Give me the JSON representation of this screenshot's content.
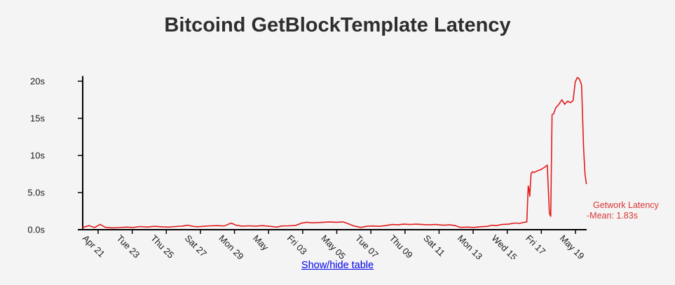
{
  "page": {
    "title": "Bitcoind GetBlockTemplate Latency",
    "background": "#f4f4f4"
  },
  "legend": {
    "line1": "Getwork Latency",
    "line2": "-Mean: 1.83s",
    "text_color": "#d93636"
  },
  "footer": {
    "toggle_link": "Show/hide table"
  },
  "chart_data": {
    "type": "line",
    "title": "Bitcoind GetBlockTemplate Latency",
    "xlabel": "",
    "ylabel": "",
    "grid": false,
    "legend_position": "right",
    "ylim": [
      0,
      20.7
    ],
    "x_unit": "days since Apr 21",
    "y_unit": "seconds",
    "axis_color": "#000000",
    "y_ticks": [
      {
        "label": "0.0s",
        "value": 0
      },
      {
        "label": "5.0s",
        "value": 5
      },
      {
        "label": "10s",
        "value": 10
      },
      {
        "label": "15s",
        "value": 15
      },
      {
        "label": "20s",
        "value": 20
      }
    ],
    "x_ticks": [
      {
        "label": "Apr 21",
        "day": 0
      },
      {
        "label": "Tue 23",
        "day": 2
      },
      {
        "label": "Thu 25",
        "day": 4
      },
      {
        "label": "Sat 27",
        "day": 6
      },
      {
        "label": "Mon 29",
        "day": 8
      },
      {
        "label": "May",
        "day": 10
      },
      {
        "label": "Fri 03",
        "day": 12
      },
      {
        "label": "May 05",
        "day": 14
      },
      {
        "label": "Tue 07",
        "day": 16
      },
      {
        "label": "Thu 09",
        "day": 18
      },
      {
        "label": "Sat 11",
        "day": 20
      },
      {
        "label": "Mon 13",
        "day": 22
      },
      {
        "label": "Wed 15",
        "day": 24
      },
      {
        "label": "Fri 17",
        "day": 26
      },
      {
        "label": "May 19",
        "day": 28
      }
    ],
    "series": [
      {
        "name": "Getwork Latency",
        "mean_label": "-Mean: 1.83s",
        "mean_seconds": 1.83,
        "color": "#e31a1a",
        "points": [
          [
            -0.9,
            0.3
          ],
          [
            -0.53,
            0.55
          ],
          [
            -0.21,
            0.28
          ],
          [
            0.12,
            0.72
          ],
          [
            0.41,
            0.32
          ],
          [
            0.82,
            0.25
          ],
          [
            1.23,
            0.28
          ],
          [
            1.64,
            0.35
          ],
          [
            2.06,
            0.3
          ],
          [
            2.47,
            0.42
          ],
          [
            2.88,
            0.35
          ],
          [
            3.29,
            0.45
          ],
          [
            3.7,
            0.4
          ],
          [
            4.11,
            0.35
          ],
          [
            4.52,
            0.42
          ],
          [
            4.93,
            0.48
          ],
          [
            5.26,
            0.6
          ],
          [
            5.55,
            0.45
          ],
          [
            5.84,
            0.4
          ],
          [
            6.17,
            0.45
          ],
          [
            6.58,
            0.52
          ],
          [
            6.99,
            0.55
          ],
          [
            7.4,
            0.5
          ],
          [
            7.81,
            0.9
          ],
          [
            8.06,
            0.62
          ],
          [
            8.43,
            0.48
          ],
          [
            8.84,
            0.52
          ],
          [
            9.25,
            0.48
          ],
          [
            9.66,
            0.55
          ],
          [
            10.07,
            0.45
          ],
          [
            10.48,
            0.35
          ],
          [
            10.77,
            0.5
          ],
          [
            11.18,
            0.52
          ],
          [
            11.59,
            0.58
          ],
          [
            11.92,
            0.88
          ],
          [
            12.25,
            1.0
          ],
          [
            12.53,
            0.92
          ],
          [
            12.82,
            0.95
          ],
          [
            13.15,
            0.98
          ],
          [
            13.56,
            1.05
          ],
          [
            13.97,
            1.0
          ],
          [
            14.38,
            1.05
          ],
          [
            14.67,
            0.8
          ],
          [
            15.0,
            0.5
          ],
          [
            15.41,
            0.3
          ],
          [
            15.74,
            0.45
          ],
          [
            16.11,
            0.5
          ],
          [
            16.48,
            0.45
          ],
          [
            16.85,
            0.55
          ],
          [
            17.26,
            0.7
          ],
          [
            17.59,
            0.65
          ],
          [
            17.92,
            0.75
          ],
          [
            18.29,
            0.7
          ],
          [
            18.66,
            0.75
          ],
          [
            18.99,
            0.7
          ],
          [
            19.4,
            0.65
          ],
          [
            19.81,
            0.7
          ],
          [
            20.22,
            0.6
          ],
          [
            20.63,
            0.65
          ],
          [
            20.96,
            0.55
          ],
          [
            21.25,
            0.3
          ],
          [
            21.62,
            0.35
          ],
          [
            22.03,
            0.3
          ],
          [
            22.44,
            0.4
          ],
          [
            22.85,
            0.45
          ],
          [
            23.1,
            0.6
          ],
          [
            23.34,
            0.55
          ],
          [
            23.67,
            0.7
          ],
          [
            24.08,
            0.75
          ],
          [
            24.45,
            0.9
          ],
          [
            24.74,
            0.85
          ],
          [
            24.99,
            1.0
          ],
          [
            25.15,
            1.05
          ],
          [
            25.23,
            5.9
          ],
          [
            25.28,
            5.4
          ],
          [
            25.32,
            4.5
          ],
          [
            25.4,
            7.6
          ],
          [
            25.48,
            7.8
          ],
          [
            25.57,
            7.7
          ],
          [
            25.73,
            7.9
          ],
          [
            25.98,
            8.1
          ],
          [
            26.18,
            8.4
          ],
          [
            26.35,
            8.7
          ],
          [
            26.47,
            2.2
          ],
          [
            26.55,
            1.8
          ],
          [
            26.63,
            15.5
          ],
          [
            26.72,
            15.6
          ],
          [
            26.84,
            16.4
          ],
          [
            27.0,
            16.8
          ],
          [
            27.21,
            17.5
          ],
          [
            27.37,
            16.9
          ],
          [
            27.54,
            17.3
          ],
          [
            27.7,
            17.1
          ],
          [
            27.86,
            17.4
          ],
          [
            27.99,
            19.9
          ],
          [
            28.11,
            20.5
          ],
          [
            28.23,
            20.3
          ],
          [
            28.36,
            19.5
          ],
          [
            28.48,
            11.0
          ],
          [
            28.56,
            7.5
          ],
          [
            28.64,
            6.2
          ]
        ]
      }
    ]
  }
}
